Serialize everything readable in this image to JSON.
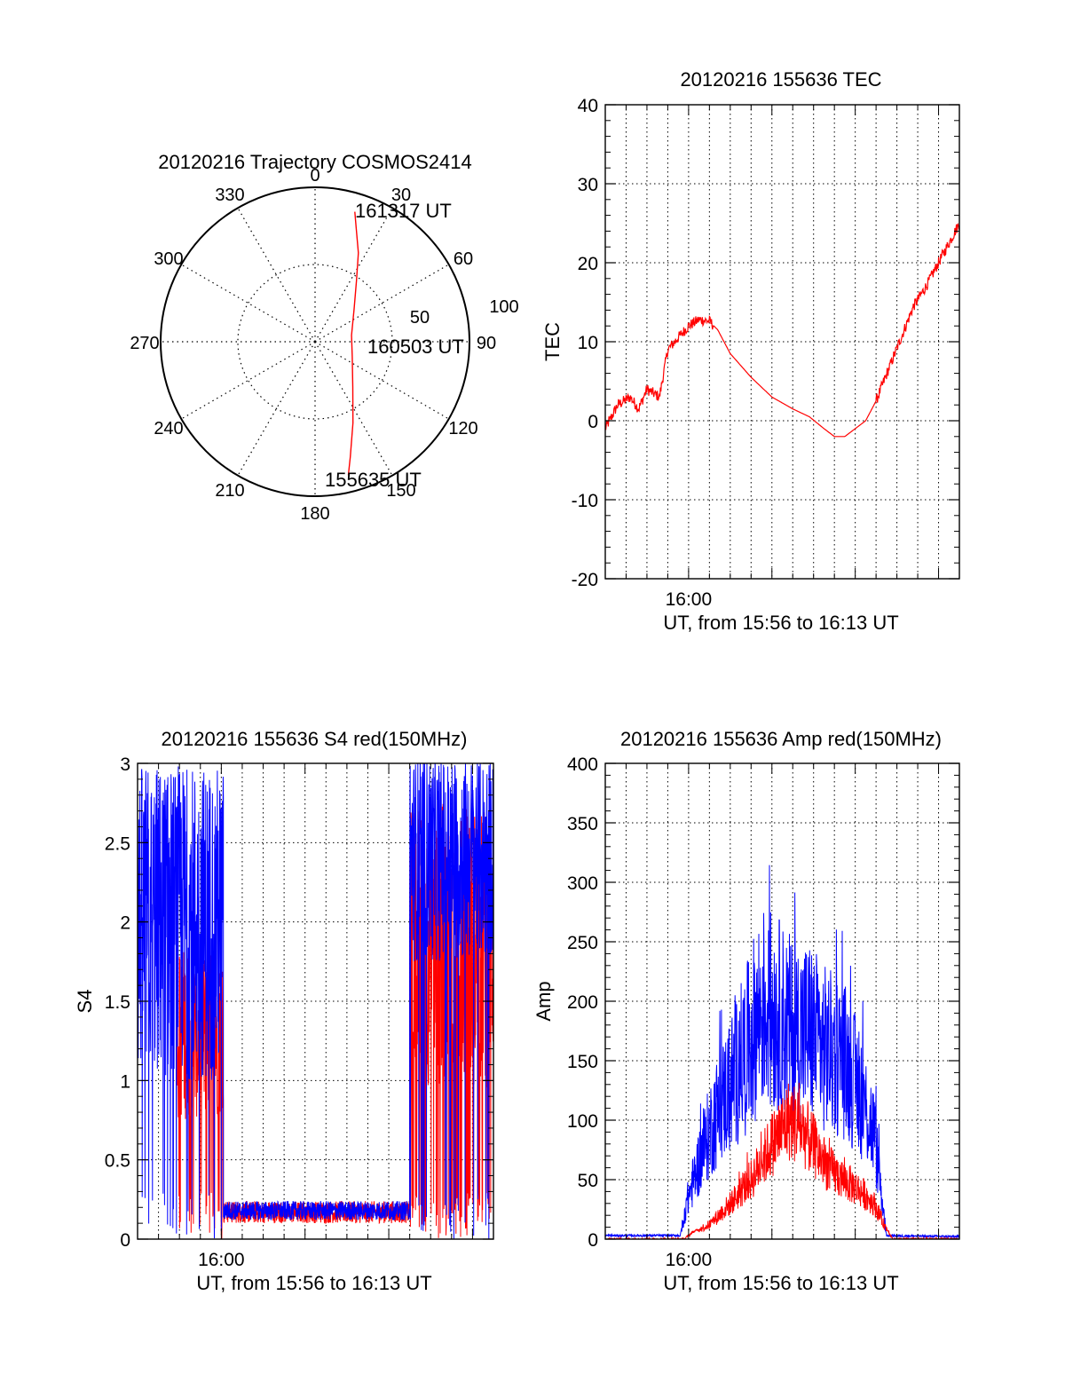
{
  "colors": {
    "red": "#ff0000",
    "blue": "#0000ff",
    "axis": "#000000",
    "grid": "#000000"
  },
  "chart_data": [
    {
      "id": "polar",
      "type": "polar",
      "title": "20120216 Trajectory COSMOS2414",
      "angle_labels": [
        "0",
        "30",
        "60",
        "90",
        "120",
        "150",
        "180",
        "210",
        "240",
        "270",
        "300",
        "330"
      ],
      "radial_labels": [
        "50",
        "100"
      ],
      "radial_max": 100,
      "grid": true,
      "trajectory": [
        {
          "az": 17,
          "zen": 88
        },
        {
          "az": 20,
          "zen": 78
        },
        {
          "az": 26,
          "zen": 64
        },
        {
          "az": 34,
          "zen": 48
        },
        {
          "az": 50,
          "zen": 33
        },
        {
          "az": 80,
          "zen": 24
        },
        {
          "az": 112,
          "zen": 26
        },
        {
          "az": 140,
          "zen": 38
        },
        {
          "az": 155,
          "zen": 58
        },
        {
          "az": 163,
          "zen": 78
        },
        {
          "az": 166,
          "zen": 89
        }
      ],
      "annotations": [
        {
          "text": "161317 UT",
          "az": 22,
          "zen": 104
        },
        {
          "text": "160503 UT",
          "az": 94,
          "zen": 62
        },
        {
          "text": "155635 UT",
          "az": 155,
          "zen": 104
        }
      ]
    },
    {
      "id": "tec",
      "type": "line",
      "title": "20120216 155636 TEC",
      "xlabel": "UT, from 15:56 to 16:13 UT",
      "ylabel": "TEC",
      "xlim": [
        0,
        17
      ],
      "ylim": [
        -20,
        40
      ],
      "yticks": [
        "-20",
        "-10",
        "0",
        "10",
        "20",
        "30",
        "40"
      ],
      "xticks": [
        {
          "label": "16:00",
          "x": 4
        }
      ],
      "grid": true,
      "series": [
        {
          "color": "red",
          "noise": 0.7,
          "noise_until": 5.2,
          "noise_from": 13.0,
          "x": [
            0,
            0.6,
            1.2,
            1.6,
            2.0,
            2.6,
            3.0,
            3.5,
            4.0,
            4.5,
            5.0,
            5.4,
            6.0,
            7.0,
            8.0,
            9.0,
            9.8,
            10.5,
            11.0,
            11.5,
            12.0,
            12.5,
            13.0,
            13.6,
            14.2,
            14.8,
            15.4,
            16.0,
            16.6,
            17.0
          ],
          "y": [
            -1,
            2,
            3,
            1.5,
            4,
            3,
            9,
            10.5,
            12,
            12.8,
            12.6,
            11.5,
            8.5,
            5.5,
            3,
            1.5,
            0.5,
            -1,
            -2,
            -2,
            -1,
            0,
            2.5,
            6.5,
            10.5,
            14.5,
            17,
            20,
            23,
            25
          ]
        }
      ]
    },
    {
      "id": "s4",
      "type": "line",
      "title": "20120216 155636 S4 red(150MHz)",
      "xlabel": "UT, from 15:56 to 16:13 UT",
      "ylabel": "S4",
      "xlim": [
        0,
        17
      ],
      "ylim": [
        0,
        3
      ],
      "yticks": [
        "0",
        "0.5",
        "1",
        "1.5",
        "2",
        "2.5",
        "3"
      ],
      "xticks": [
        {
          "label": "16:00",
          "x": 4
        }
      ],
      "grid": true,
      "series": [
        {
          "color": "red",
          "segments": [
            {
              "from": 1.9,
              "to": 4.1,
              "center": 1.3,
              "spread": 0.55,
              "drop": 0.1
            },
            {
              "from": 4.1,
              "to": 13.0,
              "center": 0.17,
              "spread": 0.07,
              "drop": 0
            },
            {
              "from": 13.0,
              "to": 17.0,
              "center": 1.85,
              "spread": 0.9,
              "drop": 0.18
            }
          ]
        },
        {
          "color": "blue",
          "segments": [
            {
              "from": 0,
              "to": 4.1,
              "center": 2.0,
              "spread": 1.0,
              "drop": 0.06
            },
            {
              "from": 4.1,
              "to": 13.0,
              "center": 0.18,
              "spread": 0.06,
              "drop": 0
            },
            {
              "from": 13.0,
              "to": 17.0,
              "center": 2.4,
              "spread": 0.65,
              "drop": 0.04
            }
          ]
        }
      ]
    },
    {
      "id": "amp",
      "type": "line",
      "title": "20120216 155636 Amp red(150MHz)",
      "xlabel": "UT, from 15:56 to 16:13 UT",
      "ylabel": "Amp",
      "xlim": [
        0,
        17
      ],
      "ylim": [
        0,
        400
      ],
      "yticks": [
        "0",
        "50",
        "100",
        "150",
        "200",
        "250",
        "300",
        "350",
        "400"
      ],
      "xticks": [
        {
          "label": "16:00",
          "x": 4
        }
      ],
      "grid": true,
      "series": [
        {
          "color": "blue",
          "x": [
            0,
            3.6,
            3.9,
            4.5,
            5.2,
            6.0,
            6.8,
            7.5,
            8.2,
            9.0,
            9.8,
            10.5,
            11.5,
            12.3,
            12.9,
            13.5,
            17.0
          ],
          "y": [
            3,
            3,
            30,
            65,
            100,
            130,
            160,
            195,
            190,
            175,
            175,
            160,
            150,
            120,
            90,
            3,
            2
          ],
          "spread": 0.45
        },
        {
          "color": "red",
          "x": [
            0,
            3.8,
            4.2,
            5.0,
            6.0,
            7.0,
            8.0,
            8.8,
            9.4,
            10.0,
            10.8,
            11.6,
            12.3,
            12.9,
            13.4,
            13.8,
            17.0
          ],
          "y": [
            0,
            0,
            6,
            12,
            30,
            50,
            80,
            100,
            95,
            78,
            58,
            48,
            40,
            30,
            12,
            0,
            0
          ],
          "spread": 0.35
        }
      ]
    }
  ]
}
